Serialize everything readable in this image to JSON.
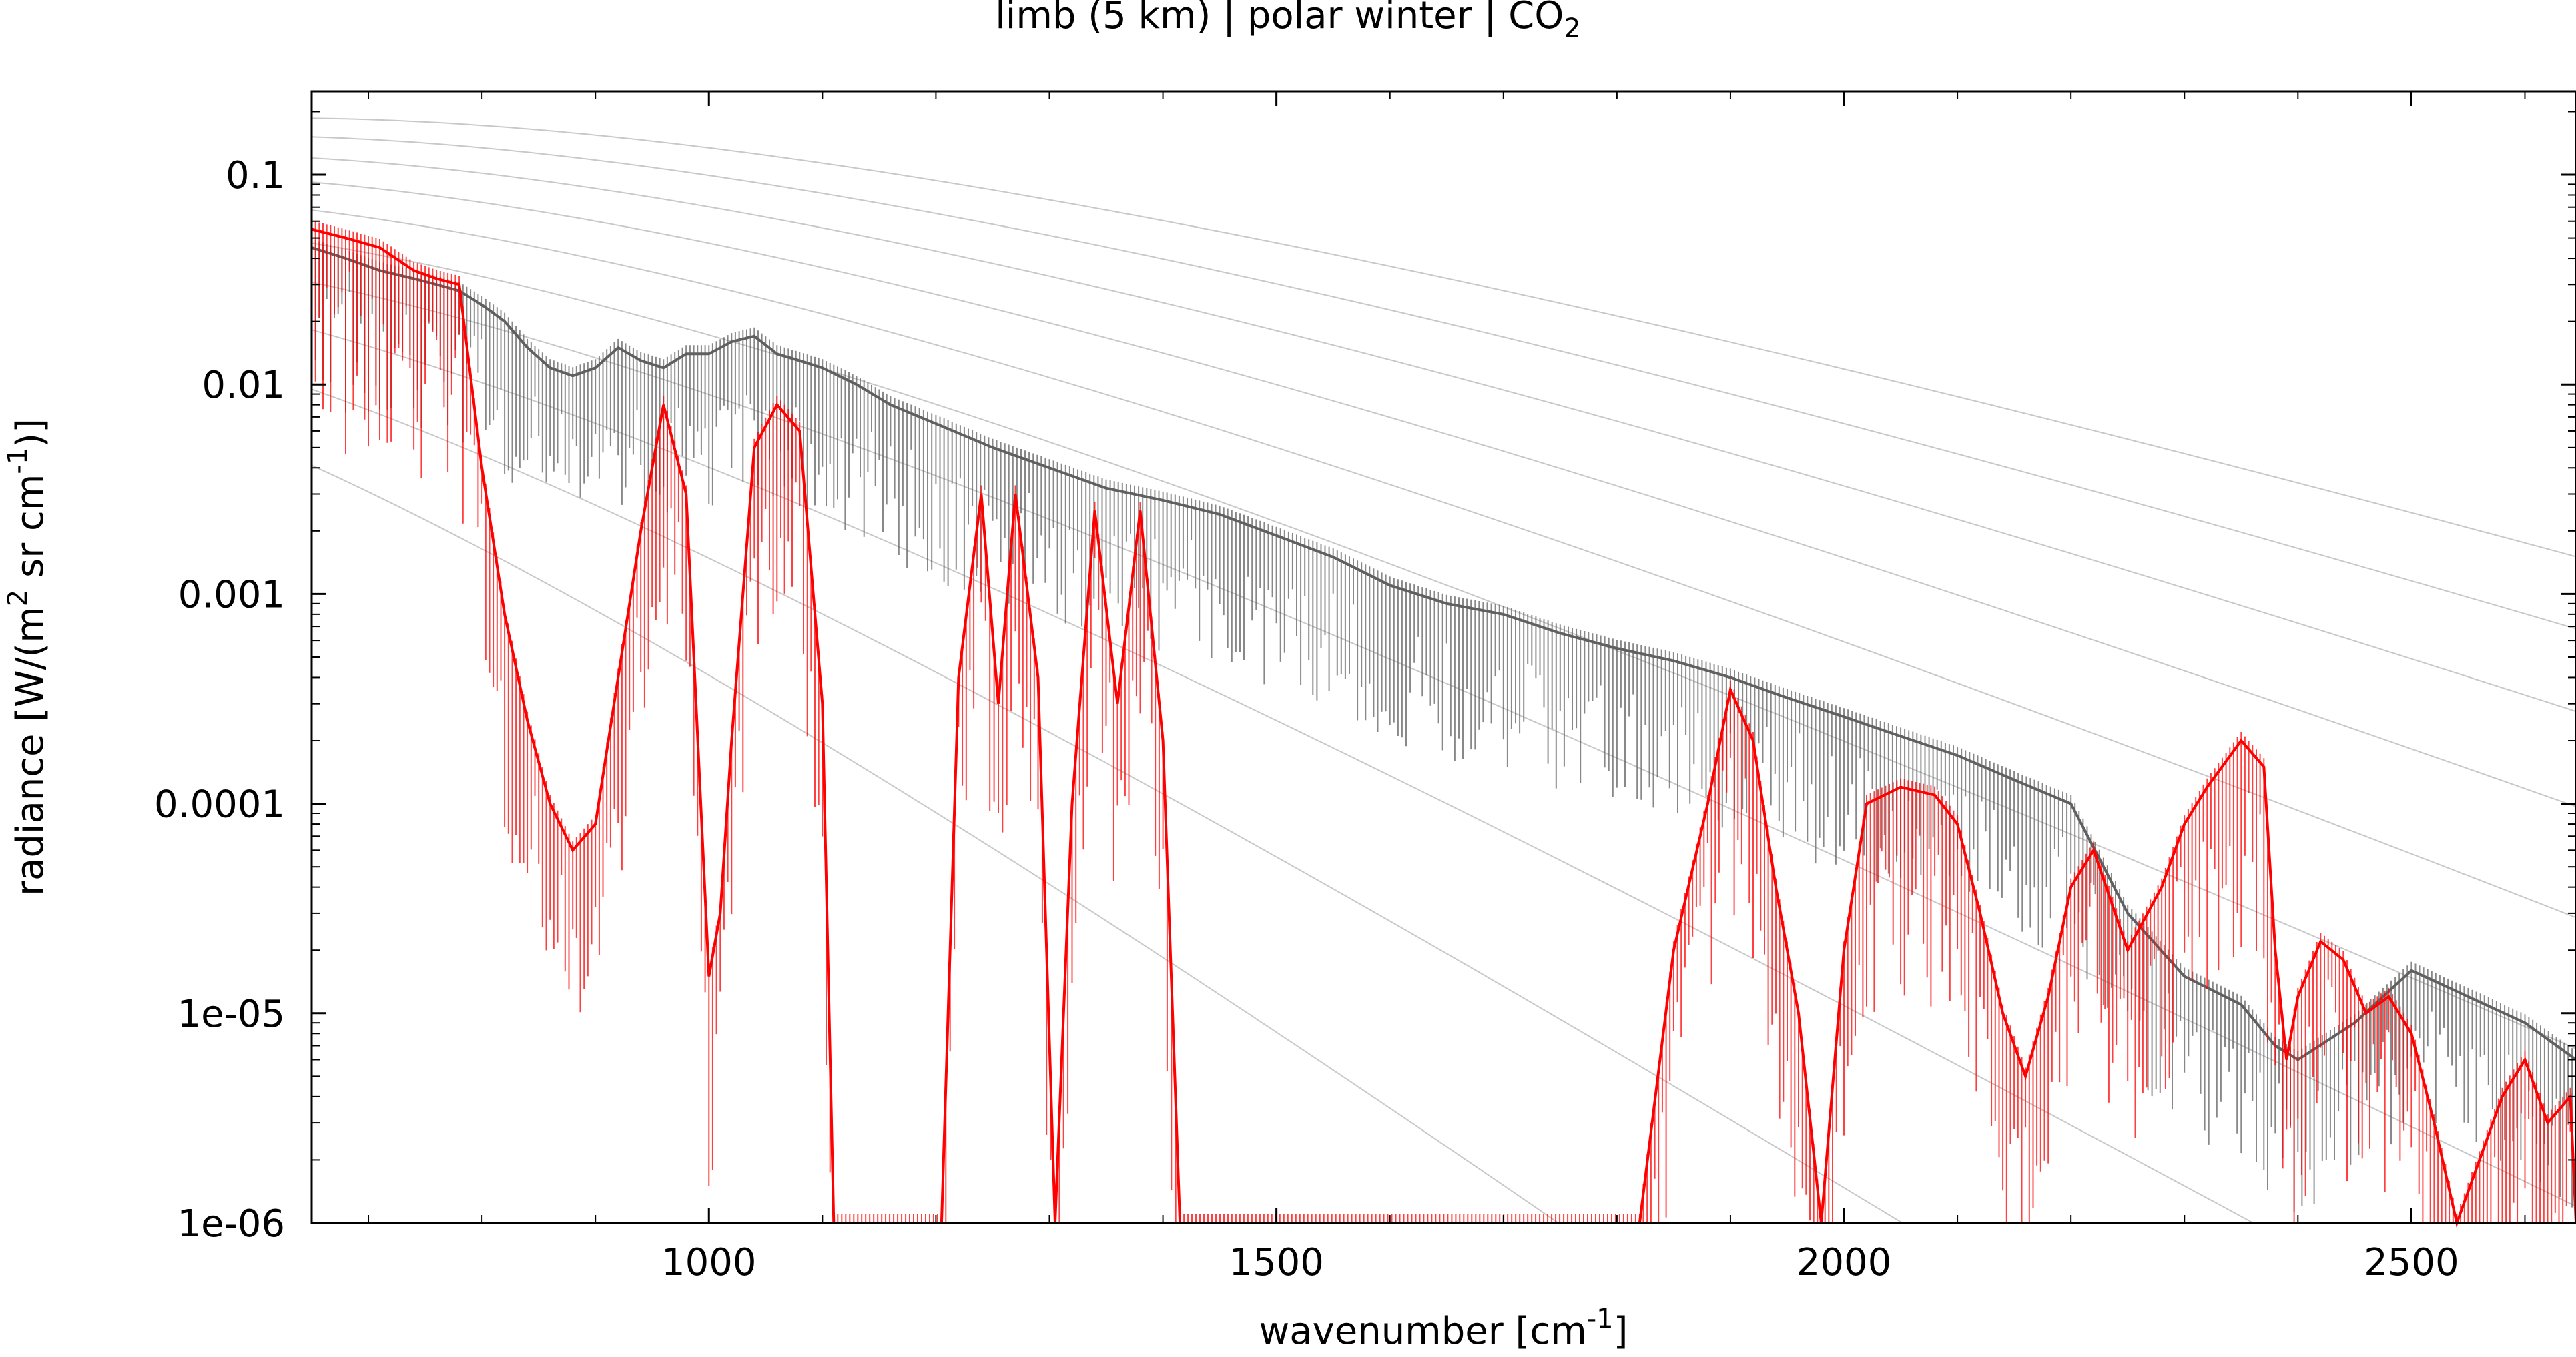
{
  "chart_data": {
    "type": "line",
    "title": "limb (5 km) | polar winter | CO",
    "title_sub": "2",
    "xlabel": "wavenumber [cm",
    "xlabel_sup": "-1",
    "xlabel_end": "]",
    "ylabel_parts": [
      "radiance [W/(m",
      "2",
      " sr cm",
      "-1",
      ")]"
    ],
    "xlim": [
      650,
      2645
    ],
    "ylim": [
      1e-06,
      0.25
    ],
    "y_scale": "log",
    "x_ticks": [
      1000,
      1500,
      2000,
      2500
    ],
    "x_tick_labels": [
      "1000",
      "1500",
      "2000",
      "2500"
    ],
    "y_ticks": [
      1e-06,
      1e-05,
      0.0001,
      0.001,
      0.01,
      0.1
    ],
    "y_tick_labels": [
      "1e-06",
      "1e-05",
      "0.0001",
      "0.001",
      "0.01",
      "0.1"
    ],
    "grid": false,
    "legend": "none",
    "colors": {
      "total": "#606060",
      "co2": "#ff0000",
      "planck": "#c8c8c8",
      "frame": "#000000"
    },
    "planck_temperatures_K": [
      320,
      300,
      280,
      260,
      240,
      220,
      200,
      180,
      160,
      140
    ],
    "series": [
      {
        "color": "#606060",
        "x": [
          650,
          680,
          710,
          740,
          760,
          780,
          800,
          820,
          840,
          860,
          880,
          900,
          920,
          940,
          960,
          980,
          1000,
          1020,
          1040,
          1060,
          1080,
          1100,
          1130,
          1160,
          1200,
          1250,
          1300,
          1350,
          1400,
          1450,
          1500,
          1550,
          1600,
          1650,
          1700,
          1750,
          1800,
          1850,
          1900,
          1950,
          2000,
          2050,
          2100,
          2150,
          2200,
          2250,
          2300,
          2350,
          2380,
          2400,
          2450,
          2500,
          2550,
          2600,
          2645
        ],
        "y": [
          0.045,
          0.04,
          0.035,
          0.032,
          0.03,
          0.028,
          0.024,
          0.02,
          0.015,
          0.012,
          0.011,
          0.012,
          0.015,
          0.013,
          0.012,
          0.014,
          0.014,
          0.016,
          0.017,
          0.014,
          0.013,
          0.012,
          0.01,
          0.008,
          0.0065,
          0.005,
          0.004,
          0.0032,
          0.0028,
          0.0024,
          0.0019,
          0.0015,
          0.0011,
          0.0009,
          0.0008,
          0.00065,
          0.00055,
          0.00048,
          0.0004,
          0.00032,
          0.00026,
          0.00021,
          0.00017,
          0.00013,
          0.0001,
          3e-05,
          1.5e-05,
          1.1e-05,
          7e-06,
          6e-06,
          9e-06,
          1.6e-05,
          1.2e-05,
          9e-06,
          6e-06
        ]
      },
      {
        "color": "#ff0000",
        "x": [
          650,
          680,
          710,
          740,
          760,
          780,
          800,
          820,
          840,
          860,
          880,
          900,
          920,
          940,
          960,
          980,
          1000,
          1010,
          1020,
          1040,
          1060,
          1080,
          1100,
          1110,
          1205,
          1220,
          1240,
          1255,
          1270,
          1290,
          1305,
          1320,
          1340,
          1360,
          1380,
          1400,
          1415,
          1820,
          1850,
          1880,
          1900,
          1920,
          1940,
          1960,
          1980,
          2000,
          2020,
          2050,
          2080,
          2100,
          2120,
          2140,
          2160,
          2180,
          2200,
          2220,
          2250,
          2280,
          2300,
          2320,
          2350,
          2370,
          2380,
          2390,
          2400,
          2420,
          2440,
          2460,
          2480,
          2500,
          2520,
          2540,
          2560,
          2580,
          2600,
          2620,
          2640,
          2645
        ],
        "y": [
          0.055,
          0.05,
          0.045,
          0.035,
          0.032,
          0.03,
          0.004,
          0.0008,
          0.00025,
          0.0001,
          6e-05,
          8e-05,
          0.0004,
          0.002,
          0.008,
          0.003,
          1.5e-05,
          3e-05,
          0.0002,
          0.005,
          0.008,
          0.006,
          0.0003,
          1e-06,
          1e-06,
          0.0004,
          0.003,
          0.0003,
          0.003,
          0.0004,
          1e-06,
          0.0001,
          0.0025,
          0.0003,
          0.0025,
          0.0002,
          1e-06,
          1e-06,
          2e-05,
          0.0001,
          0.00035,
          0.0002,
          4e-05,
          1e-05,
          1e-06,
          2e-05,
          0.0001,
          0.00012,
          0.00011,
          8e-05,
          3e-05,
          1e-05,
          5e-06,
          1.2e-05,
          4e-05,
          6e-05,
          2e-05,
          4e-05,
          8e-05,
          0.00012,
          0.0002,
          0.00015,
          2e-05,
          6e-06,
          1.2e-05,
          2.2e-05,
          1.8e-05,
          1e-05,
          1.2e-05,
          8e-06,
          3e-06,
          1e-06,
          2e-06,
          4e-06,
          6e-06,
          3e-06,
          4e-06,
          1e-06
        ]
      }
    ]
  }
}
